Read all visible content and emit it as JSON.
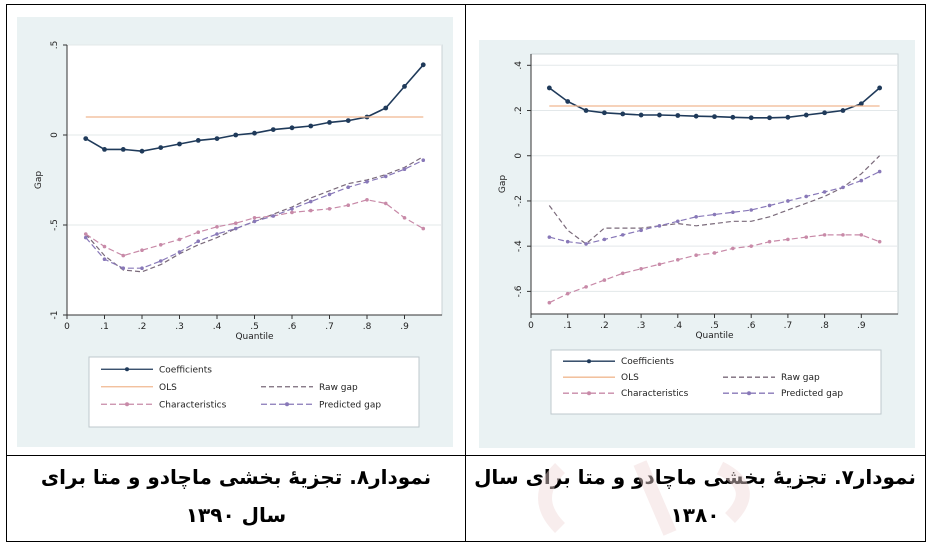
{
  "chart_data": [
    {
      "type": "line",
      "position": "left",
      "xlabel": "Quantile",
      "ylabel": "Gap",
      "xlim": [
        0,
        1
      ],
      "ylim": [
        -1,
        0.5
      ],
      "xticks": [
        "0",
        ".1",
        ".2",
        ".3",
        ".4",
        ".5",
        ".6",
        ".7",
        ".8",
        ".9"
      ],
      "yticks": [
        ".5",
        "0",
        "-.5",
        "-1"
      ],
      "x": [
        0.05,
        0.1,
        0.15,
        0.2,
        0.25,
        0.3,
        0.35,
        0.4,
        0.45,
        0.5,
        0.55,
        0.6,
        0.65,
        0.7,
        0.75,
        0.8,
        0.85,
        0.9,
        0.95
      ],
      "series": [
        {
          "name": "Coefficients",
          "color": "#1f3a5a",
          "style": "solid-dot",
          "values": [
            -0.02,
            -0.08,
            -0.08,
            -0.09,
            -0.07,
            -0.05,
            -0.03,
            -0.02,
            0.0,
            0.01,
            0.03,
            0.04,
            0.05,
            0.07,
            0.08,
            0.1,
            0.15,
            0.27,
            0.39
          ]
        },
        {
          "name": "OLS",
          "color": "#f0b890",
          "style": "solid",
          "values": [
            0.1,
            0.1,
            0.1,
            0.1,
            0.1,
            0.1,
            0.1,
            0.1,
            0.1,
            0.1,
            0.1,
            0.1,
            0.1,
            0.1,
            0.1,
            0.1,
            0.1,
            0.1,
            0.1
          ]
        },
        {
          "name": "Raw gap",
          "color": "#7a6a7a",
          "style": "dash",
          "values": [
            -0.55,
            -0.67,
            -0.75,
            -0.76,
            -0.72,
            -0.66,
            -0.61,
            -0.57,
            -0.52,
            -0.48,
            -0.44,
            -0.4,
            -0.35,
            -0.31,
            -0.27,
            -0.25,
            -0.22,
            -0.18,
            -0.12
          ]
        },
        {
          "name": "Characteristics",
          "color": "#c88aa8",
          "style": "dash-dot",
          "values": [
            -0.55,
            -0.62,
            -0.67,
            -0.64,
            -0.61,
            -0.58,
            -0.54,
            -0.51,
            -0.49,
            -0.46,
            -0.45,
            -0.43,
            -0.42,
            -0.41,
            -0.39,
            -0.36,
            -0.38,
            -0.46,
            -0.52
          ]
        },
        {
          "name": "Predicted gap",
          "color": "#8878b8",
          "style": "dash-dot",
          "values": [
            -0.57,
            -0.69,
            -0.74,
            -0.74,
            -0.7,
            -0.65,
            -0.59,
            -0.55,
            -0.52,
            -0.48,
            -0.45,
            -0.41,
            -0.37,
            -0.33,
            -0.29,
            -0.26,
            -0.23,
            -0.19,
            -0.14
          ]
        }
      ],
      "legend": [
        "Coefficients",
        "OLS",
        "Raw gap",
        "Characteristics",
        "Predicted gap"
      ],
      "legend_position": "bottom"
    },
    {
      "type": "line",
      "position": "right",
      "xlabel": "Quantile",
      "ylabel": "Gap",
      "xlim": [
        0,
        1
      ],
      "ylim": [
        -0.7,
        0.45
      ],
      "xticks": [
        "0",
        ".1",
        ".2",
        ".3",
        ".4",
        ".5",
        ".6",
        ".7",
        ".8",
        ".9"
      ],
      "yticks": [
        ".4",
        ".2",
        "0",
        "-.2",
        "-.4",
        "-.6"
      ],
      "x": [
        0.05,
        0.1,
        0.15,
        0.2,
        0.25,
        0.3,
        0.35,
        0.4,
        0.45,
        0.5,
        0.55,
        0.6,
        0.65,
        0.7,
        0.75,
        0.8,
        0.85,
        0.9,
        0.95
      ],
      "series": [
        {
          "name": "Coefficients",
          "color": "#1f3a5a",
          "style": "solid-dot",
          "values": [
            0.3,
            0.24,
            0.2,
            0.19,
            0.185,
            0.18,
            0.18,
            0.178,
            0.175,
            0.173,
            0.17,
            0.168,
            0.168,
            0.17,
            0.18,
            0.19,
            0.2,
            0.23,
            0.3
          ]
        },
        {
          "name": "OLS",
          "color": "#f0b890",
          "style": "solid",
          "values": [
            0.22,
            0.22,
            0.22,
            0.22,
            0.22,
            0.22,
            0.22,
            0.22,
            0.22,
            0.22,
            0.22,
            0.22,
            0.22,
            0.22,
            0.22,
            0.22,
            0.22,
            0.22,
            0.22
          ]
        },
        {
          "name": "Raw gap",
          "color": "#7a6a7a",
          "style": "dash",
          "values": [
            -0.22,
            -0.33,
            -0.39,
            -0.32,
            -0.32,
            -0.32,
            -0.31,
            -0.3,
            -0.31,
            -0.3,
            -0.29,
            -0.29,
            -0.27,
            -0.24,
            -0.21,
            -0.18,
            -0.14,
            -0.08,
            0.0
          ]
        },
        {
          "name": "Characteristics",
          "color": "#c88aa8",
          "style": "dash-dot",
          "values": [
            -0.65,
            -0.61,
            -0.58,
            -0.55,
            -0.52,
            -0.5,
            -0.48,
            -0.46,
            -0.44,
            -0.43,
            -0.41,
            -0.4,
            -0.38,
            -0.37,
            -0.36,
            -0.35,
            -0.35,
            -0.35,
            -0.38
          ]
        },
        {
          "name": "Predicted gap",
          "color": "#8878b8",
          "style": "dash-dot",
          "values": [
            -0.36,
            -0.38,
            -0.39,
            -0.37,
            -0.35,
            -0.33,
            -0.31,
            -0.29,
            -0.27,
            -0.26,
            -0.25,
            -0.24,
            -0.22,
            -0.2,
            -0.18,
            -0.16,
            -0.14,
            -0.11,
            -0.07
          ]
        }
      ],
      "legend": [
        "Coefficients",
        "OLS",
        "Raw gap",
        "Characteristics",
        "Predicted gap"
      ],
      "legend_position": "bottom"
    }
  ],
  "captions": {
    "right": {
      "line1": "نمودار۷. تجزیۀ بخشی ماچادو و متا برای سال",
      "line2": "۱۳۸۰"
    },
    "left": {
      "line1": "نمودار۸. تجزیۀ بخشی ماچادو و متا برای",
      "line2": "سال ۱۳۹۰"
    }
  }
}
